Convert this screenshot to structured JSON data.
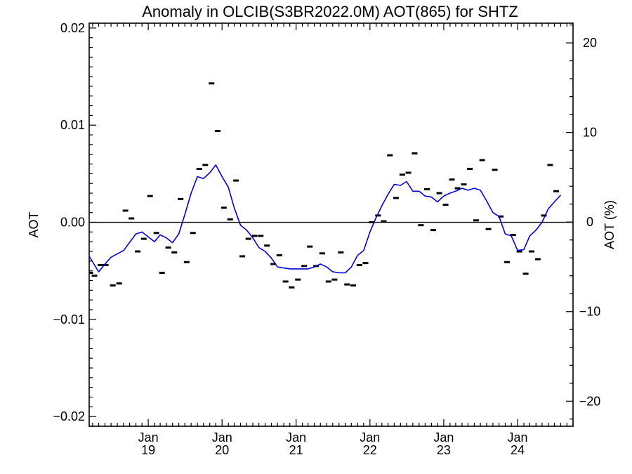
{
  "chart_data": {
    "type": "line",
    "title": "Anomaly in OLCIB(S3BR2022.0M) AOT(865) for SHTZ",
    "ylabel": "AOT",
    "ylabel_right": "AOT (%)",
    "ylim": [
      -0.021,
      0.0205
    ],
    "y_ticks": [
      {
        "value": 0.02,
        "label": "0.02"
      },
      {
        "value": 0.01,
        "label": "0.01"
      },
      {
        "value": 0.0,
        "label": "0.00"
      },
      {
        "value": -0.01,
        "label": "−0.01"
      },
      {
        "value": -0.02,
        "label": "−0.02"
      }
    ],
    "ylim_right": [
      -22.8,
      22.2
    ],
    "y_ticks_right": [
      {
        "value": 20,
        "label": "20"
      },
      {
        "value": 10,
        "label": "10"
      },
      {
        "value": 0,
        "label": "0"
      },
      {
        "value": -10,
        "label": "−10"
      },
      {
        "value": -20,
        "label": "−20"
      }
    ],
    "xlim": [
      "2018-03-15",
      "2024-10-01"
    ],
    "x_ticks": [
      {
        "date": "2019-01-01",
        "month": "Jan",
        "year": "19"
      },
      {
        "date": "2020-01-01",
        "month": "Jan",
        "year": "20"
      },
      {
        "date": "2021-01-01",
        "month": "Jan",
        "year": "21"
      },
      {
        "date": "2022-01-01",
        "month": "Jan",
        "year": "22"
      },
      {
        "date": "2023-01-01",
        "month": "Jan",
        "year": "23"
      },
      {
        "date": "2024-01-01",
        "month": "Jan",
        "year": "24"
      }
    ],
    "zero_line": 0,
    "colors": {
      "smooth": "#0000dd",
      "points": "#000000",
      "axis": "#000000"
    },
    "series": [
      {
        "style": "marker-dash",
        "points": [
          {
            "x": "2018-03-20",
            "y": -0.0052
          },
          {
            "x": "2018-04-10",
            "y": -0.0055
          },
          {
            "x": "2018-05-10",
            "y": -0.0044
          },
          {
            "x": "2018-06-05",
            "y": -0.0044
          },
          {
            "x": "2018-07-10",
            "y": -0.0065
          },
          {
            "x": "2018-08-10",
            "y": -0.0063
          },
          {
            "x": "2018-09-10",
            "y": 0.0012
          },
          {
            "x": "2018-10-10",
            "y": 0.0004
          },
          {
            "x": "2018-11-10",
            "y": -0.003
          },
          {
            "x": "2018-12-10",
            "y": -0.0017
          },
          {
            "x": "2019-01-10",
            "y": 0.0027
          },
          {
            "x": "2019-02-10",
            "y": -0.0011
          },
          {
            "x": "2019-03-10",
            "y": -0.0052
          },
          {
            "x": "2019-04-10",
            "y": -0.0026
          },
          {
            "x": "2019-05-10",
            "y": -0.0031
          },
          {
            "x": "2019-06-10",
            "y": 0.0024
          },
          {
            "x": "2019-07-10",
            "y": -0.0041
          },
          {
            "x": "2019-08-10",
            "y": -0.0011
          },
          {
            "x": "2019-09-10",
            "y": 0.0055
          },
          {
            "x": "2019-10-10",
            "y": 0.0059
          },
          {
            "x": "2019-11-10",
            "y": 0.0143
          },
          {
            "x": "2019-12-10",
            "y": 0.0094
          },
          {
            "x": "2020-01-10",
            "y": 0.0015
          },
          {
            "x": "2020-02-10",
            "y": 0.0003
          },
          {
            "x": "2020-03-10",
            "y": 0.0043
          },
          {
            "x": "2020-04-10",
            "y": -0.0035
          },
          {
            "x": "2020-05-10",
            "y": -0.0017
          },
          {
            "x": "2020-06-10",
            "y": -0.0014
          },
          {
            "x": "2020-07-10",
            "y": -0.0014
          },
          {
            "x": "2020-08-10",
            "y": -0.0024
          },
          {
            "x": "2020-09-10",
            "y": -0.0043
          },
          {
            "x": "2020-10-10",
            "y": -0.0034
          },
          {
            "x": "2020-11-10",
            "y": -0.0061
          },
          {
            "x": "2020-12-10",
            "y": -0.0067
          },
          {
            "x": "2021-01-10",
            "y": -0.0059
          },
          {
            "x": "2021-02-10",
            "y": -0.0045
          },
          {
            "x": "2021-03-10",
            "y": -0.0025
          },
          {
            "x": "2021-04-10",
            "y": -0.0045
          },
          {
            "x": "2021-05-10",
            "y": -0.0032
          },
          {
            "x": "2021-06-10",
            "y": -0.0061
          },
          {
            "x": "2021-07-10",
            "y": -0.0059
          },
          {
            "x": "2021-08-10",
            "y": -0.0031
          },
          {
            "x": "2021-09-10",
            "y": -0.0064
          },
          {
            "x": "2021-10-10",
            "y": -0.0065
          },
          {
            "x": "2021-11-10",
            "y": -0.0044
          },
          {
            "x": "2021-12-10",
            "y": -0.0042
          },
          {
            "x": "2022-01-10",
            "y": 0.0
          },
          {
            "x": "2022-02-10",
            "y": 0.0007
          },
          {
            "x": "2022-03-10",
            "y": 0.0001
          },
          {
            "x": "2022-04-10",
            "y": 0.0069
          },
          {
            "x": "2022-05-10",
            "y": 0.0025
          },
          {
            "x": "2022-06-10",
            "y": 0.0049
          },
          {
            "x": "2022-07-10",
            "y": 0.0051
          },
          {
            "x": "2022-08-10",
            "y": 0.0071
          },
          {
            "x": "2022-09-10",
            "y": -0.0003
          },
          {
            "x": "2022-10-10",
            "y": 0.0034
          },
          {
            "x": "2022-11-10",
            "y": -0.0008
          },
          {
            "x": "2022-12-10",
            "y": 0.003
          },
          {
            "x": "2023-01-10",
            "y": 0.0018
          },
          {
            "x": "2023-02-10",
            "y": 0.0044
          },
          {
            "x": "2023-03-10",
            "y": 0.0035
          },
          {
            "x": "2023-04-10",
            "y": 0.0039
          },
          {
            "x": "2023-05-10",
            "y": 0.0055
          },
          {
            "x": "2023-06-10",
            "y": 0.0002
          },
          {
            "x": "2023-07-10",
            "y": 0.0064
          },
          {
            "x": "2023-08-10",
            "y": -0.0007
          },
          {
            "x": "2023-09-10",
            "y": 0.0054
          },
          {
            "x": "2023-10-10",
            "y": 0.0006
          },
          {
            "x": "2023-11-10",
            "y": -0.0041
          },
          {
            "x": "2023-12-10",
            "y": -0.0013
          },
          {
            "x": "2024-01-10",
            "y": -0.003
          },
          {
            "x": "2024-02-10",
            "y": -0.0053
          },
          {
            "x": "2024-03-10",
            "y": -0.003
          },
          {
            "x": "2024-04-10",
            "y": -0.0038
          },
          {
            "x": "2024-05-10",
            "y": 0.0007
          },
          {
            "x": "2024-06-10",
            "y": 0.0059
          },
          {
            "x": "2024-07-10",
            "y": 0.0032
          }
        ]
      },
      {
        "style": "line",
        "points": [
          {
            "x": "2018-03-15",
            "y": -0.0035
          },
          {
            "x": "2018-05-01",
            "y": -0.0051
          },
          {
            "x": "2018-06-01",
            "y": -0.0043
          },
          {
            "x": "2018-07-01",
            "y": -0.0036
          },
          {
            "x": "2018-09-01",
            "y": -0.0029
          },
          {
            "x": "2018-11-01",
            "y": -0.0012
          },
          {
            "x": "2018-12-01",
            "y": -0.001
          },
          {
            "x": "2019-01-01",
            "y": -0.0015
          },
          {
            "x": "2019-02-01",
            "y": -0.002
          },
          {
            "x": "2019-03-01",
            "y": -0.0013
          },
          {
            "x": "2019-04-01",
            "y": -0.0016
          },
          {
            "x": "2019-05-01",
            "y": -0.0021
          },
          {
            "x": "2019-06-01",
            "y": -0.0012
          },
          {
            "x": "2019-07-01",
            "y": 0.0008
          },
          {
            "x": "2019-08-01",
            "y": 0.003
          },
          {
            "x": "2019-09-01",
            "y": 0.0047
          },
          {
            "x": "2019-10-01",
            "y": 0.0045
          },
          {
            "x": "2019-11-01",
            "y": 0.0051
          },
          {
            "x": "2019-12-01",
            "y": 0.0059
          },
          {
            "x": "2020-01-01",
            "y": 0.0047
          },
          {
            "x": "2020-02-01",
            "y": 0.0036
          },
          {
            "x": "2020-03-01",
            "y": 0.0015
          },
          {
            "x": "2020-04-01",
            "y": -0.0003
          },
          {
            "x": "2020-05-01",
            "y": -0.0008
          },
          {
            "x": "2020-06-01",
            "y": -0.0016
          },
          {
            "x": "2020-07-01",
            "y": -0.0026
          },
          {
            "x": "2020-08-01",
            "y": -0.003
          },
          {
            "x": "2020-09-01",
            "y": -0.0037
          },
          {
            "x": "2020-10-01",
            "y": -0.0046
          },
          {
            "x": "2020-12-01",
            "y": -0.0048
          },
          {
            "x": "2021-01-15",
            "y": -0.0048
          },
          {
            "x": "2021-03-01",
            "y": -0.0048
          },
          {
            "x": "2021-04-01",
            "y": -0.0046
          },
          {
            "x": "2021-05-01",
            "y": -0.0043
          },
          {
            "x": "2021-06-01",
            "y": -0.0046
          },
          {
            "x": "2021-07-01",
            "y": -0.0051
          },
          {
            "x": "2021-08-01",
            "y": -0.0052
          },
          {
            "x": "2021-09-01",
            "y": -0.0052
          },
          {
            "x": "2021-10-01",
            "y": -0.0046
          },
          {
            "x": "2021-11-01",
            "y": -0.0034
          },
          {
            "x": "2021-12-01",
            "y": -0.0029
          },
          {
            "x": "2022-01-01",
            "y": -0.001
          },
          {
            "x": "2022-02-01",
            "y": 0.0005
          },
          {
            "x": "2022-03-01",
            "y": 0.0017
          },
          {
            "x": "2022-04-01",
            "y": 0.0029
          },
          {
            "x": "2022-05-01",
            "y": 0.0039
          },
          {
            "x": "2022-06-01",
            "y": 0.0038
          },
          {
            "x": "2022-07-01",
            "y": 0.0042
          },
          {
            "x": "2022-08-01",
            "y": 0.0032
          },
          {
            "x": "2022-09-01",
            "y": 0.0032
          },
          {
            "x": "2022-10-01",
            "y": 0.0027
          },
          {
            "x": "2022-11-01",
            "y": 0.0026
          },
          {
            "x": "2022-12-01",
            "y": 0.0021
          },
          {
            "x": "2023-01-01",
            "y": 0.0027
          },
          {
            "x": "2023-02-01",
            "y": 0.003
          },
          {
            "x": "2023-03-01",
            "y": 0.0032
          },
          {
            "x": "2023-04-01",
            "y": 0.0035
          },
          {
            "x": "2023-05-01",
            "y": 0.0033
          },
          {
            "x": "2023-06-01",
            "y": 0.0035
          },
          {
            "x": "2023-07-01",
            "y": 0.0033
          },
          {
            "x": "2023-08-01",
            "y": 0.0022
          },
          {
            "x": "2023-09-01",
            "y": 0.001
          },
          {
            "x": "2023-10-01",
            "y": 0.0006
          },
          {
            "x": "2023-11-01",
            "y": -0.0012
          },
          {
            "x": "2023-12-01",
            "y": -0.0014
          },
          {
            "x": "2024-01-01",
            "y": -0.0029
          },
          {
            "x": "2024-02-01",
            "y": -0.0028
          },
          {
            "x": "2024-03-01",
            "y": -0.0014
          },
          {
            "x": "2024-04-01",
            "y": -0.0008
          },
          {
            "x": "2024-05-01",
            "y": 0.0
          },
          {
            "x": "2024-06-01",
            "y": 0.0014
          },
          {
            "x": "2024-07-01",
            "y": 0.0021
          },
          {
            "x": "2024-08-01",
            "y": 0.0028
          }
        ]
      }
    ]
  }
}
